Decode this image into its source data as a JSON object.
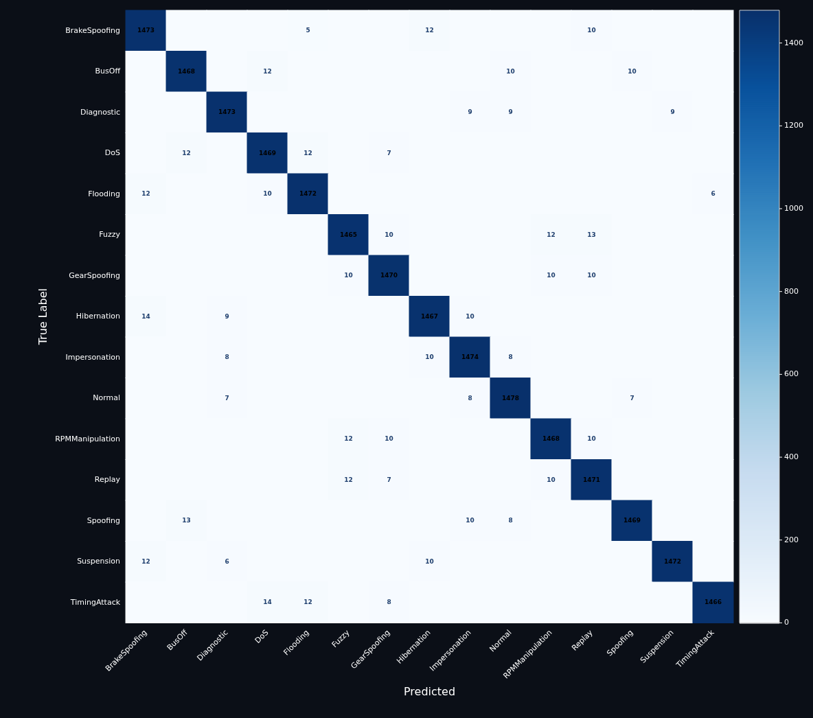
{
  "chart_data": {
    "type": "heatmap",
    "xlabel": "Predicted",
    "ylabel": "True Label",
    "categories": [
      "BrakeSpoofing",
      "BusOff",
      "Diagnostic",
      "DoS",
      "Flooding",
      "Fuzzy",
      "GearSpoofing",
      "Hibernation",
      "Impersonation",
      "Normal",
      "RPMManipulation",
      "Replay",
      "Spoofing",
      "Suspension",
      "TimingAttack"
    ],
    "y_categories": [
      "BrakeSpoofing",
      "BusOff",
      "Diagnostic",
      "DoS",
      "Flooding",
      "Fuzzy",
      "GearSpoofing",
      "Hibernation",
      "Impersonation",
      "Normal",
      "RPMManipulation",
      "Replay",
      "Spoofing",
      "Suspension",
      "TimingAttack"
    ],
    "cells": [
      [
        1473,
        0,
        0,
        0,
        5,
        0,
        0,
        12,
        0,
        0,
        0,
        10,
        0,
        0,
        0
      ],
      [
        0,
        1468,
        0,
        12,
        0,
        0,
        0,
        0,
        0,
        10,
        0,
        0,
        10,
        0,
        0
      ],
      [
        0,
        0,
        1473,
        0,
        0,
        0,
        0,
        0,
        9,
        9,
        0,
        0,
        0,
        9,
        0
      ],
      [
        0,
        12,
        0,
        1469,
        12,
        0,
        7,
        0,
        0,
        0,
        0,
        0,
        0,
        0,
        0
      ],
      [
        12,
        0,
        0,
        10,
        1472,
        0,
        0,
        0,
        0,
        0,
        0,
        0,
        0,
        0,
        6
      ],
      [
        0,
        0,
        0,
        0,
        0,
        1465,
        10,
        0,
        0,
        0,
        12,
        13,
        0,
        0,
        0
      ],
      [
        0,
        0,
        0,
        0,
        0,
        10,
        1470,
        0,
        0,
        0,
        10,
        10,
        0,
        0,
        0
      ],
      [
        14,
        0,
        9,
        0,
        0,
        0,
        0,
        1467,
        10,
        0,
        0,
        0,
        0,
        0,
        0
      ],
      [
        0,
        0,
        8,
        0,
        0,
        0,
        0,
        10,
        1474,
        8,
        0,
        0,
        0,
        0,
        0
      ],
      [
        0,
        0,
        7,
        0,
        0,
        0,
        0,
        0,
        8,
        1478,
        0,
        0,
        7,
        0,
        0
      ],
      [
        0,
        0,
        0,
        0,
        0,
        12,
        10,
        0,
        0,
        0,
        1468,
        10,
        0,
        0,
        0
      ],
      [
        0,
        0,
        0,
        0,
        0,
        12,
        7,
        0,
        0,
        0,
        10,
        1471,
        0,
        0,
        0
      ],
      [
        0,
        13,
        0,
        0,
        0,
        0,
        0,
        0,
        10,
        8,
        0,
        0,
        1469,
        0,
        0
      ],
      [
        12,
        0,
        6,
        0,
        0,
        0,
        0,
        10,
        0,
        0,
        0,
        0,
        0,
        1472,
        0
      ],
      [
        0,
        0,
        0,
        14,
        12,
        0,
        8,
        0,
        0,
        0,
        0,
        0,
        0,
        0,
        1466
      ]
    ],
    "cell_labels": [
      [
        "1473",
        null,
        null,
        null,
        "5",
        null,
        null,
        "12",
        null,
        null,
        null,
        "10",
        null,
        null,
        null
      ],
      [
        null,
        "1468",
        null,
        "12",
        null,
        null,
        null,
        null,
        null,
        "10",
        null,
        null,
        "10",
        null,
        null
      ],
      [
        null,
        null,
        "1473",
        null,
        null,
        null,
        null,
        null,
        "9",
        "9",
        null,
        null,
        null,
        "9",
        null
      ],
      [
        null,
        "12",
        null,
        "1469",
        "12",
        null,
        "7",
        null,
        null,
        null,
        null,
        null,
        null,
        null,
        null
      ],
      [
        "12",
        null,
        null,
        "10",
        "1472",
        null,
        null,
        null,
        null,
        null,
        null,
        null,
        null,
        null,
        "6"
      ],
      [
        null,
        null,
        null,
        null,
        null,
        "1465",
        "10",
        null,
        null,
        null,
        "12",
        "13",
        null,
        null,
        null
      ],
      [
        null,
        null,
        null,
        null,
        null,
        "10",
        "1470",
        null,
        null,
        null,
        "10",
        "10",
        null,
        null,
        null
      ],
      [
        "14",
        null,
        "9",
        null,
        null,
        null,
        null,
        "1467",
        "10",
        null,
        null,
        null,
        null,
        null,
        null
      ],
      [
        null,
        null,
        "8",
        null,
        null,
        null,
        null,
        "10",
        "1474",
        "8",
        null,
        null,
        null,
        null,
        null
      ],
      [
        null,
        null,
        "7",
        null,
        null,
        null,
        null,
        null,
        "8",
        "1478",
        null,
        null,
        "7",
        null,
        null
      ],
      [
        null,
        null,
        null,
        null,
        null,
        "12",
        "10",
        null,
        null,
        null,
        "1468",
        "10",
        null,
        null,
        null
      ],
      [
        null,
        null,
        null,
        null,
        null,
        "12",
        "7",
        null,
        null,
        null,
        "10",
        "1471",
        null,
        null,
        null
      ],
      [
        null,
        "13",
        null,
        null,
        null,
        null,
        null,
        null,
        "10",
        "8",
        null,
        null,
        "1469",
        null,
        null
      ],
      [
        "12",
        null,
        "6",
        null,
        null,
        null,
        null,
        "10",
        null,
        null,
        null,
        null,
        null,
        "1472",
        null
      ],
      [
        null,
        null,
        null,
        "14",
        "12",
        null,
        "8",
        null,
        null,
        null,
        null,
        null,
        null,
        null,
        "1466"
      ]
    ],
    "clim": [
      0,
      1479
    ],
    "cticks": [
      0,
      200,
      400,
      600,
      800,
      1000,
      1200,
      1400
    ]
  }
}
